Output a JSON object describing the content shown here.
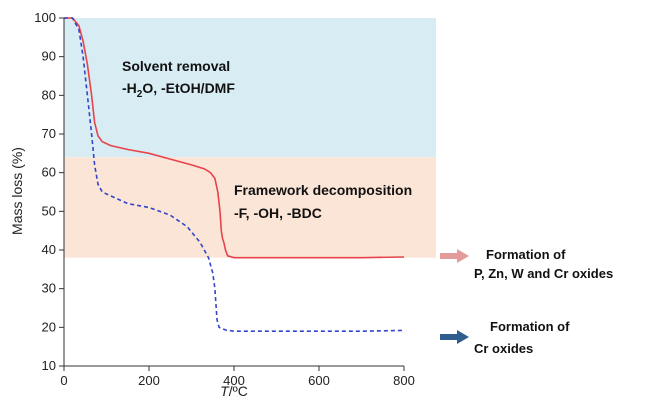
{
  "chart_data": {
    "type": "line",
    "xlabel_var": "T",
    "xlabel_unit": "/ºC",
    "ylabel": "Mass loss (%)",
    "xlim": [
      0,
      800
    ],
    "ylim": [
      10,
      100
    ],
    "x_ticks": [
      0,
      200,
      400,
      600,
      800
    ],
    "y_ticks": [
      10,
      20,
      30,
      40,
      50,
      60,
      70,
      80,
      90,
      100
    ],
    "regions": [
      {
        "name": "solvent-removal",
        "y_range": [
          64,
          100
        ],
        "x_range": [
          0,
          800
        ],
        "color": "#d8ecf3",
        "label_line1": "Solvent removal",
        "label_line2_a": "-H",
        "label_line2_sub": "2",
        "label_line2_b": "O, -EtOH/DMF"
      },
      {
        "name": "framework-decomposition",
        "y_range": [
          38,
          64
        ],
        "x_range": [
          0,
          800
        ],
        "color": "#fbe5d6",
        "label_line1": "Framework decomposition",
        "label_line2": "-F, -OH, -BDC"
      }
    ],
    "series": [
      {
        "style": "solid",
        "color": "#e8434a",
        "points": [
          [
            0,
            100
          ],
          [
            20,
            100
          ],
          [
            35,
            98
          ],
          [
            45,
            94
          ],
          [
            55,
            88
          ],
          [
            65,
            80
          ],
          [
            72,
            73
          ],
          [
            80,
            69.5
          ],
          [
            90,
            68
          ],
          [
            110,
            67
          ],
          [
            150,
            66
          ],
          [
            200,
            65
          ],
          [
            250,
            63.5
          ],
          [
            300,
            62
          ],
          [
            330,
            61
          ],
          [
            345,
            60
          ],
          [
            355,
            58.5
          ],
          [
            362,
            55
          ],
          [
            367,
            50
          ],
          [
            370,
            45
          ],
          [
            373,
            43
          ],
          [
            376,
            42
          ],
          [
            380,
            40
          ],
          [
            385,
            38.5
          ],
          [
            400,
            38
          ],
          [
            500,
            38
          ],
          [
            600,
            38
          ],
          [
            700,
            38
          ],
          [
            800,
            38.2
          ]
        ]
      },
      {
        "style": "dashed",
        "color": "#3344cc",
        "points": [
          [
            0,
            100
          ],
          [
            20,
            100
          ],
          [
            35,
            97
          ],
          [
            45,
            90
          ],
          [
            55,
            80
          ],
          [
            65,
            70
          ],
          [
            72,
            62
          ],
          [
            80,
            57
          ],
          [
            90,
            55
          ],
          [
            110,
            54
          ],
          [
            150,
            52
          ],
          [
            200,
            51
          ],
          [
            250,
            49
          ],
          [
            290,
            46
          ],
          [
            320,
            42
          ],
          [
            340,
            38
          ],
          [
            350,
            34
          ],
          [
            355,
            30
          ],
          [
            358,
            25
          ],
          [
            360,
            22
          ],
          [
            365,
            20
          ],
          [
            380,
            19.3
          ],
          [
            400,
            19
          ],
          [
            500,
            19
          ],
          [
            600,
            19
          ],
          [
            700,
            19
          ],
          [
            800,
            19.2
          ]
        ]
      }
    ],
    "annotations": [
      {
        "name": "mixed-oxides",
        "line1": "Formation of",
        "line2": "P, Zn, W  and Cr oxides",
        "arrow_color": "#e59a9a"
      },
      {
        "name": "cr-oxides",
        "line1": "Formation of",
        "line2": "Cr oxides",
        "arrow_color": "#2e5d8e"
      }
    ]
  }
}
